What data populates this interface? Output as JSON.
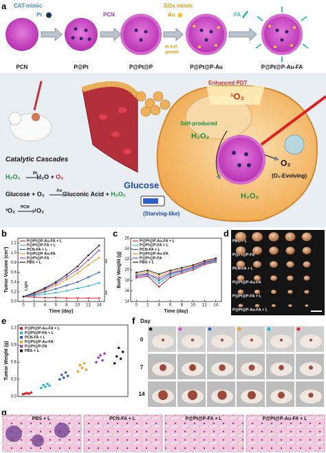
{
  "panel_letters": [
    "a",
    "b",
    "c",
    "d",
    "e",
    "f",
    "g"
  ],
  "panel_a": {
    "cat_mimic": "CAT-mimic",
    "pt": "Pt",
    "pcn": "PCN",
    "gox_mimic": "GOx-mimic",
    "au": "Au",
    "in_suit_growth": [
      "in suit",
      "growth"
    ],
    "fa": "FA",
    "particles": [
      "PCN",
      "P@Pt",
      "P@Pt@P",
      "P@Pt@P-Au",
      "P@Pt@P-Au-FA"
    ],
    "enhanced_pdt": "Enhanced PDT",
    "singlet_oxygen": "¹O₂",
    "self_produced": "Self-produced",
    "h2o2_top": "H₂O₂",
    "o2": "O₂",
    "o2_evolving": "(O₂-Evolving)",
    "h2o2_bottom": "H₂O₂",
    "glucose": "Glucose",
    "starving_like": "(Starving-like)",
    "catalytic_cascades": "Catalytic Cascades",
    "equations": [
      {
        "left": "H₂O₂",
        "catalyst": "Pt",
        "right": [
          "H₂O + ",
          "O₂"
        ]
      },
      {
        "left": "Glucose + O₂",
        "catalyst": "Au",
        "right": [
          "Gluconic Acid + ",
          "H₂O₂"
        ]
      },
      {
        "left": "³O₂",
        "catalyst": "PCN",
        "right": [
          "¹O₂",
          ""
        ]
      }
    ]
  },
  "chart_data": [
    {
      "type": "line",
      "ylabel": "Tumor Volume (cm³)",
      "xlabel": "Time (day)",
      "annotations": [
        "Light",
        "***",
        "***"
      ],
      "x": [
        0,
        2,
        4,
        6,
        8,
        10,
        12,
        14
      ],
      "xlim": [
        -1,
        15
      ],
      "xticks": [
        0,
        2,
        4,
        6,
        8,
        10,
        12,
        14
      ],
      "ylim": [
        0,
        1.3
      ],
      "yticks": [
        {
          "value": 0,
          "label": "0.0"
        },
        {
          "value": 0.2,
          "label": "0.2"
        },
        {
          "value": 0.4,
          "label": "0.4"
        },
        {
          "value": 0.6,
          "label": "0.6"
        },
        {
          "value": 0.8,
          "label": "0.8"
        },
        {
          "value": 1.0,
          "label": "1.0"
        },
        {
          "value": 1.2,
          "label": "1.2"
        }
      ],
      "series": [
        {
          "name": "P@Pt@P-Au-FA + L",
          "color": "#e8202a",
          "values": [
            0.1,
            0.09,
            0.08,
            0.08,
            0.07,
            0.07,
            0.07,
            0.07
          ]
        },
        {
          "name": "P@Pt@P-FA + L",
          "color": "#29b6d9",
          "values": [
            0.1,
            0.12,
            0.15,
            0.18,
            0.22,
            0.27,
            0.32,
            0.38
          ]
        },
        {
          "name": "PCN-FA + L",
          "color": "#2f5dc8",
          "values": [
            0.1,
            0.14,
            0.2,
            0.26,
            0.33,
            0.4,
            0.5,
            0.6
          ]
        },
        {
          "name": "P@Pt@P-Au-FA",
          "color": "#f0a020",
          "values": [
            0.1,
            0.16,
            0.24,
            0.33,
            0.45,
            0.58,
            0.75,
            0.9
          ]
        },
        {
          "name": "P@Pt@P-FA",
          "color": "#9b3fcf",
          "values": [
            0.1,
            0.17,
            0.26,
            0.37,
            0.5,
            0.65,
            0.85,
            1.05
          ]
        },
        {
          "name": "PBS + L",
          "color": "#222222",
          "values": [
            0.1,
            0.18,
            0.28,
            0.4,
            0.55,
            0.72,
            0.95,
            1.15
          ]
        }
      ]
    },
    {
      "type": "line",
      "ylabel": "Body Weight (g)",
      "xlabel": "Time (day)",
      "x": [
        0,
        2,
        4,
        6,
        8,
        10,
        12,
        14
      ],
      "xlim": [
        -1,
        15
      ],
      "xticks": [
        0,
        2,
        4,
        6,
        8,
        10,
        12,
        14
      ],
      "ylim": [
        14,
        26
      ],
      "yticks": [
        14,
        16,
        18,
        20,
        22,
        24,
        26
      ],
      "series": [
        {
          "name": "P@Pt@P-Au-FA + L",
          "color": "#e8202a",
          "values": [
            18.5,
            18.8,
            16.8,
            18.6,
            19.4,
            20.0,
            21.0,
            21.5
          ]
        },
        {
          "name": "P@Pt@P-FA + L",
          "color": "#29b6d9",
          "values": [
            18.8,
            19.0,
            17.5,
            18.9,
            19.6,
            20.2,
            21.2,
            21.6
          ]
        },
        {
          "name": "PCN-FA + L",
          "color": "#2f5dc8",
          "values": [
            19.0,
            19.3,
            18.0,
            19.2,
            19.8,
            20.4,
            21.3,
            21.8
          ]
        },
        {
          "name": "P@Pt@P-Au-FA",
          "color": "#f0a020",
          "values": [
            19.2,
            19.6,
            18.8,
            19.6,
            20.1,
            20.7,
            21.5,
            22.0
          ]
        },
        {
          "name": "P@Pt@P-FA",
          "color": "#9b3fcf",
          "values": [
            18.7,
            19.2,
            18.4,
            19.4,
            19.9,
            20.5,
            21.4,
            21.9
          ]
        },
        {
          "name": "PBS + L",
          "color": "#222222",
          "values": [
            19.5,
            19.9,
            19.2,
            19.9,
            20.4,
            20.9,
            21.7,
            22.2
          ]
        }
      ]
    },
    {
      "type": "dot",
      "ylabel": "Tumor Weight (g)",
      "ylim": [
        0,
        1.25
      ],
      "yticks": [
        {
          "value": 0,
          "label": "0.0"
        },
        {
          "value": 0.3,
          "label": "0.3"
        },
        {
          "value": 0.6,
          "label": "0.6"
        },
        {
          "value": 0.9,
          "label": "0.9"
        },
        {
          "value": 1.2,
          "label": "1.2"
        }
      ],
      "series": [
        {
          "name": "P@Pt@P-Au-FA + L",
          "color": "#e8202a",
          "values": [
            0.04,
            0.05,
            0.06,
            0.05,
            0.07
          ]
        },
        {
          "name": "P@Pt@P-FA + L",
          "color": "#29b6d9",
          "values": [
            0.15,
            0.2,
            0.17,
            0.22,
            0.19
          ]
        },
        {
          "name": "PCN-FA + L",
          "color": "#2f5dc8",
          "values": [
            0.3,
            0.38,
            0.33,
            0.42,
            0.36
          ]
        },
        {
          "name": "P@Pt@P-Au-FA",
          "color": "#f0a020",
          "values": [
            0.44,
            0.55,
            0.5,
            0.58,
            0.47
          ]
        },
        {
          "name": "P@Pt@P-FA",
          "color": "#9b3fcf",
          "values": [
            0.6,
            0.68,
            0.72,
            0.63,
            0.75
          ]
        },
        {
          "name": "PBS + L",
          "color": "#222222",
          "values": [
            0.58,
            0.7,
            0.85,
            0.66,
            0.78
          ]
        }
      ]
    }
  ],
  "panel_d": {
    "labels": [
      "PBS + L",
      "P@Pt@P-FA",
      "PCN-FA + L",
      "P@Pt@P-Au-FA",
      "P@Pt@P-FA + L",
      "P@Pt@P-Au-FA + L"
    ]
  },
  "panel_f": {
    "day": "Day",
    "rows": [
      "0",
      "7",
      "14"
    ]
  },
  "panel_g": {
    "labels": [
      "PBS + L",
      "PCN-FA + L",
      "P@Pt@P-FA + L",
      "P@Pt@P-Au-FA + L"
    ]
  }
}
